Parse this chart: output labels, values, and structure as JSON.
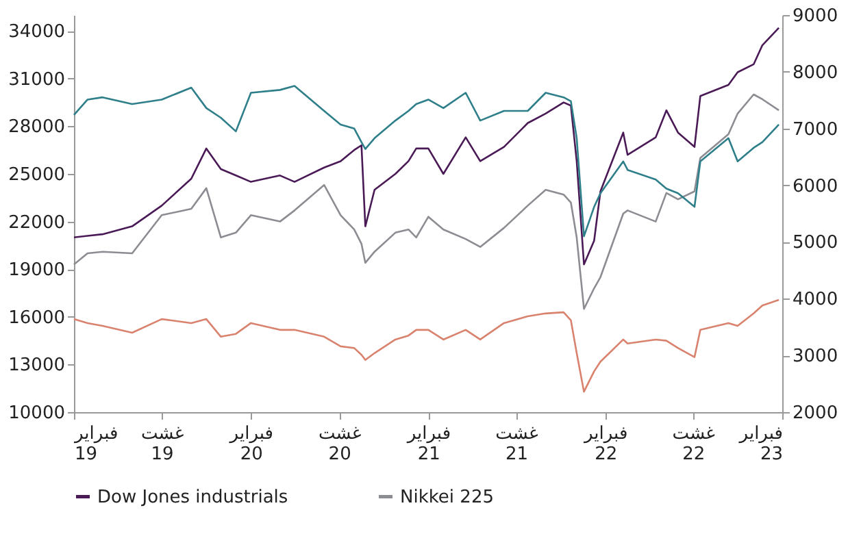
{
  "chart_data": {
    "type": "line",
    "x": [
      "2019-02-01",
      "2019-03-01",
      "2019-04-01",
      "2019-06-01",
      "2019-08-01",
      "2019-10-01",
      "2019-11-01",
      "2019-12-01",
      "2020-01-01",
      "2020-02-01",
      "2020-04-01",
      "2020-05-01",
      "2020-07-01",
      "2020-08-04",
      "2020-09-01",
      "2020-09-16",
      "2020-09-24",
      "2020-10-13",
      "2020-11-25",
      "2020-12-22",
      "2021-01-07",
      "2021-02-01",
      "2021-03-04",
      "2021-04-19",
      "2021-05-19",
      "2021-07-07",
      "2021-08-25",
      "2021-10-01",
      "2021-11-07",
      "2021-11-22",
      "2021-12-04",
      "2021-12-19",
      "2022-01-09",
      "2022-01-22",
      "2022-03-10",
      "2022-03-19",
      "2022-05-16",
      "2022-06-07",
      "2022-07-01",
      "2022-08-04",
      "2022-08-16",
      "2022-10-13",
      "2022-11-01",
      "2022-12-04",
      "2022-12-22",
      "2023-01-25"
    ],
    "series": [
      {
        "name": "Dow Jones industrials",
        "color": "#4a1a56",
        "values": [
          21000,
          21100,
          21200,
          21700,
          23000,
          24700,
          26600,
          25300,
          24900,
          24500,
          24900,
          24500,
          25400,
          25800,
          26500,
          26800,
          21700,
          24000,
          25000,
          25800,
          26600,
          26600,
          25000,
          27300,
          25800,
          26700,
          28200,
          28800,
          29500,
          29300,
          25800,
          19300,
          20800,
          23900,
          27600,
          26200,
          27300,
          29000,
          27600,
          26700,
          29900,
          30600,
          31400,
          31900,
          33100,
          34200
        ]
      },
      {
        "name": "Nikkei 225",
        "color": "#8c8c93",
        "values": [
          19300,
          20000,
          20100,
          20000,
          22400,
          22800,
          24100,
          21000,
          21300,
          22400,
          22000,
          22700,
          24300,
          22400,
          21500,
          20600,
          19400,
          20100,
          21300,
          21500,
          21000,
          22300,
          21500,
          20900,
          20400,
          21600,
          23000,
          24000,
          23700,
          23200,
          21000,
          16500,
          17800,
          18500,
          22500,
          22700,
          22000,
          23800,
          23400,
          23900,
          26000,
          27500,
          28800,
          30000,
          29700,
          29000
        ]
      },
      {
        "color": "#2e7f8a",
        "axis": "y2",
        "values": [
          7240,
          7510,
          7550,
          7430,
          7510,
          7720,
          7360,
          7190,
          6950,
          7630,
          7680,
          7750,
          7310,
          7070,
          7000,
          6760,
          6640,
          6830,
          7140,
          7310,
          7430,
          7510,
          7360,
          7630,
          7140,
          7310,
          7310,
          7630,
          7550,
          7480,
          6830,
          5100,
          5620,
          5860,
          6420,
          6270,
          6100,
          5940,
          5860,
          5620,
          6420,
          6830,
          6420,
          6660,
          6760,
          7070
        ]
      },
      {
        "color": "#d9826e",
        "axis": "y2",
        "values": [
          3640,
          3570,
          3520,
          3400,
          3640,
          3570,
          3640,
          3330,
          3380,
          3570,
          3450,
          3450,
          3330,
          3160,
          3130,
          3010,
          2920,
          3040,
          3280,
          3350,
          3450,
          3450,
          3280,
          3450,
          3280,
          3570,
          3690,
          3740,
          3760,
          3620,
          3040,
          2360,
          2720,
          2890,
          3280,
          3210,
          3280,
          3260,
          3130,
          2970,
          3450,
          3570,
          3520,
          3740,
          3880,
          3980
        ]
      }
    ],
    "xlim": [
      "2019-02-01",
      "2023-02-01"
    ],
    "xticks": [
      {
        "value": "2019-02-01",
        "label": "فبراير\n19"
      },
      {
        "value": "2019-08-01",
        "label": "غشت\n19"
      },
      {
        "value": "2020-02-01",
        "label": "فبراير\n20"
      },
      {
        "value": "2020-08-01",
        "label": "غشت\n20"
      },
      {
        "value": "2021-02-01",
        "label": "فبراير\n21"
      },
      {
        "value": "2021-08-01",
        "label": "غشت\n21"
      },
      {
        "value": "2022-02-01",
        "label": "فبراير\n22"
      },
      {
        "value": "2022-08-01",
        "label": "غشت\n22"
      },
      {
        "value": "2023-02-01",
        "label": "فبراير\n23"
      }
    ],
    "ylim": [
      10000,
      35000
    ],
    "yticks": [
      10000,
      13000,
      16000,
      19000,
      22000,
      25000,
      28000,
      31000,
      34000
    ],
    "y2lim": [
      2000,
      9000
    ],
    "y2ticks": [
      2000,
      3000,
      4000,
      5000,
      6000,
      7000,
      8000,
      9000
    ],
    "grid": false,
    "legend": "bottom",
    "line_style": "solid"
  }
}
